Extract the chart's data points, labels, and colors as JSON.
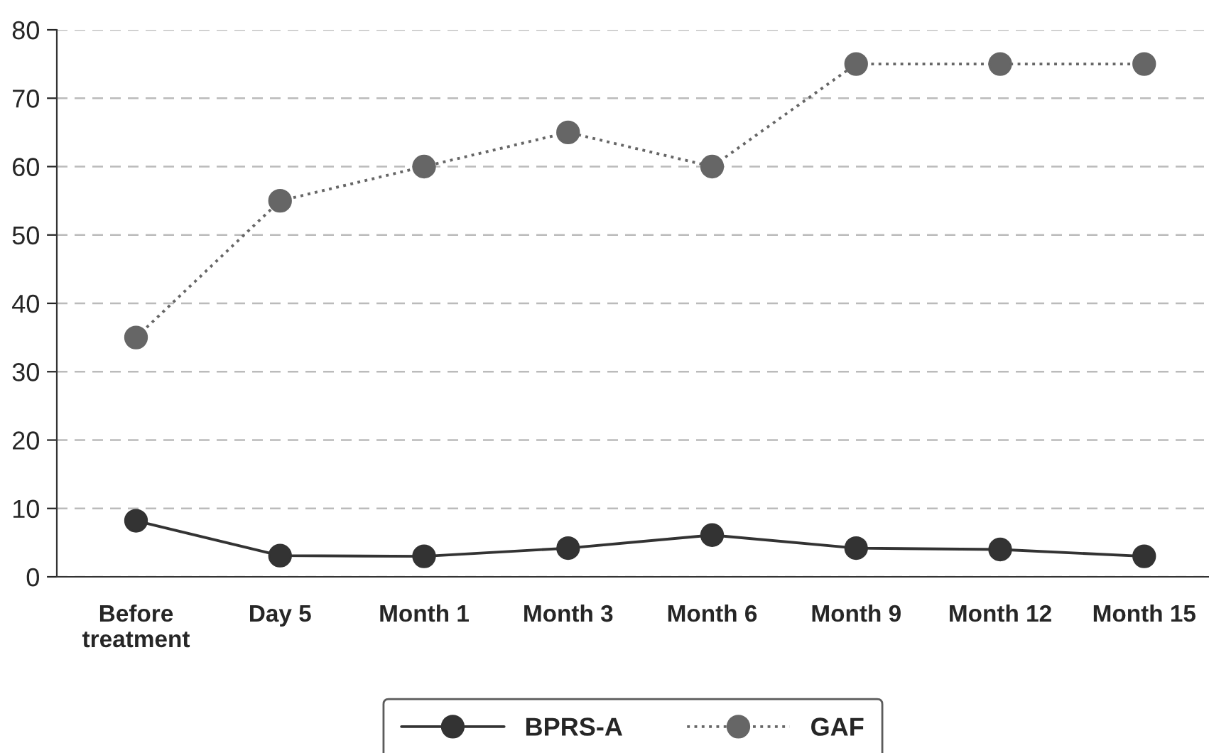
{
  "chart_data": {
    "type": "line",
    "categories": [
      "Before\ntreatment",
      "Day 5",
      "Month 1",
      "Month 3",
      "Month 6",
      "Month 9",
      "Month 12",
      "Month 15"
    ],
    "series": [
      {
        "name": "BPRS-A",
        "color": "#333333",
        "line_style": "solid",
        "values": [
          8.2,
          3.1,
          3.0,
          4.2,
          6.1,
          4.2,
          4.0,
          3.0
        ]
      },
      {
        "name": "GAF",
        "color": "#666666",
        "line_style": "dotted",
        "values": [
          35,
          55,
          60,
          65,
          60,
          75,
          75,
          75
        ]
      }
    ],
    "ylim": [
      0,
      80
    ],
    "yticks": [
      0,
      10,
      20,
      30,
      40,
      50,
      60,
      70,
      80
    ],
    "grid": "y",
    "legend": "bottom",
    "marker": "circle"
  }
}
